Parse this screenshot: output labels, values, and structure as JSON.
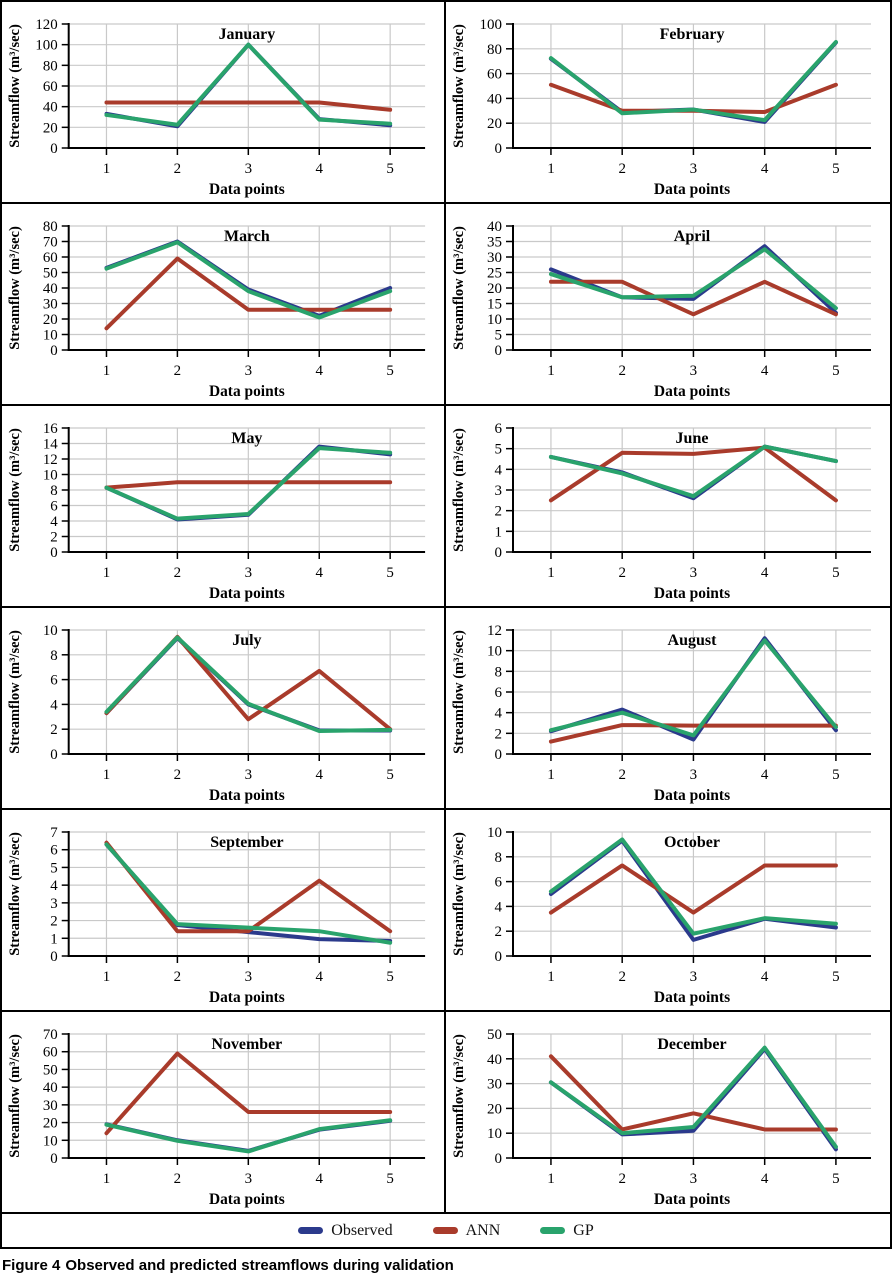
{
  "figure": {
    "caption_label": "Figure 4",
    "caption_text": "Observed and predicted streamflows during validation"
  },
  "legend": [
    {
      "label": "Observed",
      "color": "#2B3A8C"
    },
    {
      "label": "ANN",
      "color": "#A93B2B"
    },
    {
      "label": "GP",
      "color": "#29A36C"
    }
  ],
  "chart_common": {
    "xlabel": "Data points",
    "ylabel": "Streamflow (m³/sec)",
    "categories": [
      1,
      2,
      3,
      4,
      5
    ],
    "grid": true,
    "legend_position": "bottom",
    "colors": {
      "Observed": "#2B3A8C",
      "ANN": "#A93B2B",
      "GP": "#29A36C"
    }
  },
  "chart_data": [
    {
      "type": "line",
      "title": "January",
      "ylim": [
        0,
        120
      ],
      "yticks": [
        0,
        20,
        40,
        60,
        80,
        100,
        120
      ],
      "series": [
        {
          "name": "Observed",
          "values": [
            33,
            21,
            100,
            28,
            22
          ]
        },
        {
          "name": "ANN",
          "values": [
            44,
            44,
            44,
            44,
            37
          ]
        },
        {
          "name": "GP",
          "values": [
            32,
            22.5,
            100,
            27.5,
            23.5
          ]
        }
      ]
    },
    {
      "type": "line",
      "title": "February",
      "ylim": [
        0,
        100
      ],
      "yticks": [
        0,
        20,
        40,
        60,
        80,
        100
      ],
      "series": [
        {
          "name": "Observed",
          "values": [
            72,
            29,
            31,
            21,
            85
          ]
        },
        {
          "name": "ANN",
          "values": [
            51,
            30,
            30,
            29,
            51
          ]
        },
        {
          "name": "GP",
          "values": [
            72.5,
            28,
            31,
            22.5,
            85.5
          ]
        }
      ]
    },
    {
      "type": "line",
      "title": "March",
      "ylim": [
        0,
        80
      ],
      "yticks": [
        0,
        10,
        20,
        30,
        40,
        50,
        60,
        70,
        80
      ],
      "series": [
        {
          "name": "Observed",
          "values": [
            53,
            70,
            39,
            22,
            40
          ]
        },
        {
          "name": "ANN",
          "values": [
            14,
            59,
            26,
            26,
            26
          ]
        },
        {
          "name": "GP",
          "values": [
            52.5,
            69.5,
            38,
            21,
            38
          ]
        }
      ]
    },
    {
      "type": "line",
      "title": "April",
      "ylim": [
        0,
        40
      ],
      "yticks": [
        0,
        5,
        10,
        15,
        20,
        25,
        30,
        35,
        40
      ],
      "series": [
        {
          "name": "Observed",
          "values": [
            26,
            17,
            16.5,
            33.5,
            12
          ]
        },
        {
          "name": "ANN",
          "values": [
            22,
            22,
            11.5,
            22,
            11.5
          ]
        },
        {
          "name": "GP",
          "values": [
            24.5,
            17,
            17.5,
            32.5,
            13.5
          ]
        }
      ]
    },
    {
      "type": "line",
      "title": "May",
      "ylim": [
        0,
        16
      ],
      "yticks": [
        0,
        2,
        4,
        6,
        8,
        10,
        12,
        14,
        16
      ],
      "series": [
        {
          "name": "Observed",
          "values": [
            8.3,
            4.2,
            4.8,
            13.6,
            12.6
          ]
        },
        {
          "name": "ANN",
          "values": [
            8.3,
            9,
            9,
            9,
            9
          ]
        },
        {
          "name": "GP",
          "values": [
            8.3,
            4.3,
            4.9,
            13.4,
            12.8
          ]
        }
      ]
    },
    {
      "type": "line",
      "title": "June",
      "ylim": [
        0,
        6
      ],
      "yticks": [
        0,
        1,
        2,
        3,
        4,
        5,
        6
      ],
      "series": [
        {
          "name": "Observed",
          "values": [
            4.6,
            3.85,
            2.6,
            5.1,
            4.4
          ]
        },
        {
          "name": "ANN",
          "values": [
            2.5,
            4.8,
            4.75,
            5.05,
            2.5
          ]
        },
        {
          "name": "GP",
          "values": [
            4.6,
            3.8,
            2.7,
            5.1,
            4.4
          ]
        }
      ]
    },
    {
      "type": "line",
      "title": "July",
      "ylim": [
        0,
        10
      ],
      "yticks": [
        0,
        2,
        4,
        6,
        8,
        10
      ],
      "series": [
        {
          "name": "Observed",
          "values": [
            3.3,
            9.35,
            4,
            1.9,
            1.9
          ]
        },
        {
          "name": "ANN",
          "values": [
            3.3,
            9.45,
            2.8,
            6.7,
            2
          ]
        },
        {
          "name": "GP",
          "values": [
            3.4,
            9.4,
            4.05,
            1.85,
            1.95
          ]
        }
      ]
    },
    {
      "type": "line",
      "title": "August",
      "ylim": [
        0,
        12
      ],
      "yticks": [
        0,
        2,
        4,
        6,
        8,
        10,
        12
      ],
      "series": [
        {
          "name": "Observed",
          "values": [
            2.2,
            4.3,
            1.4,
            11.2,
            2.3
          ]
        },
        {
          "name": "ANN",
          "values": [
            1.2,
            2.8,
            2.75,
            2.75,
            2.75
          ]
        },
        {
          "name": "GP",
          "values": [
            2.3,
            4,
            1.8,
            11,
            2.6
          ]
        }
      ]
    },
    {
      "type": "line",
      "title": "September",
      "ylim": [
        0,
        7
      ],
      "yticks": [
        0,
        1,
        2,
        3,
        4,
        5,
        6,
        7
      ],
      "series": [
        {
          "name": "Observed",
          "values": [
            6.3,
            1.75,
            1.35,
            0.95,
            0.85
          ]
        },
        {
          "name": "ANN",
          "values": [
            6.4,
            1.4,
            1.4,
            4.25,
            1.4
          ]
        },
        {
          "name": "GP",
          "values": [
            6.3,
            1.8,
            1.6,
            1.4,
            0.75
          ]
        }
      ]
    },
    {
      "type": "line",
      "title": "October",
      "ylim": [
        0,
        10
      ],
      "yticks": [
        0,
        2,
        4,
        6,
        8,
        10
      ],
      "series": [
        {
          "name": "Observed",
          "values": [
            5,
            9.3,
            1.3,
            3,
            2.3
          ]
        },
        {
          "name": "ANN",
          "values": [
            3.5,
            7.3,
            3.5,
            7.3,
            7.3
          ]
        },
        {
          "name": "GP",
          "values": [
            5.2,
            9.4,
            1.8,
            3.05,
            2.6
          ]
        }
      ]
    },
    {
      "type": "line",
      "title": "November",
      "ylim": [
        0,
        70
      ],
      "yticks": [
        0,
        10,
        20,
        30,
        40,
        50,
        60,
        70
      ],
      "series": [
        {
          "name": "Observed",
          "values": [
            19,
            10,
            4,
            16,
            21
          ]
        },
        {
          "name": "ANN",
          "values": [
            14,
            59,
            26,
            26,
            26
          ]
        },
        {
          "name": "GP",
          "values": [
            18.8,
            9.7,
            3.7,
            16.3,
            21.3
          ]
        }
      ]
    },
    {
      "type": "line",
      "title": "December",
      "ylim": [
        0,
        50
      ],
      "yticks": [
        0,
        10,
        20,
        30,
        40,
        50
      ],
      "series": [
        {
          "name": "Observed",
          "values": [
            30.5,
            9.5,
            11,
            44,
            3.5
          ]
        },
        {
          "name": "ANN",
          "values": [
            41,
            11.5,
            18,
            11.5,
            11.5
          ]
        },
        {
          "name": "GP",
          "values": [
            30.5,
            10,
            12.5,
            44.5,
            4.5
          ]
        }
      ]
    }
  ]
}
